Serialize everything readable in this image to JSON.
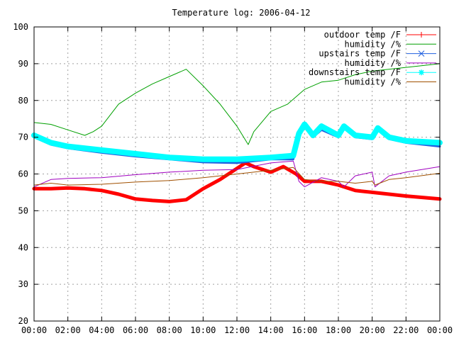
{
  "chart_data": {
    "type": "line",
    "title": "Temperature log: 2006-04-12",
    "xlabel": "",
    "ylabel": "",
    "xlim": [
      "00:00",
      "24:00"
    ],
    "ylim": [
      20,
      100
    ],
    "x_ticks": [
      "00:00",
      "02:00",
      "04:00",
      "06:00",
      "08:00",
      "10:00",
      "12:00",
      "14:00",
      "16:00",
      "18:00",
      "20:00",
      "22:00",
      "00:00"
    ],
    "y_ticks": [
      "20",
      "30",
      "40",
      "50",
      "60",
      "70",
      "80",
      "90",
      "100"
    ],
    "grid": true,
    "legend": "top-right",
    "series": [
      {
        "name": "outdoor temp /F",
        "color": "#ff0000",
        "marker": "plus",
        "x": [
          "00:00",
          "01:00",
          "02:00",
          "03:00",
          "04:00",
          "05:00",
          "06:00",
          "07:00",
          "08:00",
          "09:00",
          "10:00",
          "11:00",
          "12:00",
          "12:30",
          "13:00",
          "14:00",
          "14:45",
          "15:30",
          "16:00",
          "17:00",
          "18:00",
          "19:00",
          "20:00",
          "22:00",
          "24:00"
        ],
        "values": [
          56,
          56,
          56.2,
          56,
          55.5,
          54.5,
          53.2,
          52.8,
          52.5,
          53,
          56,
          58.5,
          61.5,
          63,
          62,
          60.5,
          62,
          60,
          58,
          58,
          57,
          55.5,
          55,
          54,
          53.2
        ]
      },
      {
        "name": "humidity /%",
        "color": "#00a000",
        "marker": "none",
        "x": [
          "00:00",
          "01:00",
          "02:00",
          "03:00",
          "03:30",
          "04:00",
          "05:00",
          "06:00",
          "07:00",
          "08:00",
          "09:00",
          "10:00",
          "11:00",
          "12:00",
          "12:40",
          "13:00",
          "14:00",
          "15:00",
          "16:00",
          "17:00",
          "18:00",
          "19:00",
          "20:00",
          "22:00",
          "24:00"
        ],
        "values": [
          74,
          73.5,
          72,
          70.5,
          71.5,
          73,
          79,
          82,
          84.5,
          86.5,
          88.5,
          84,
          79,
          73,
          68,
          71.5,
          77,
          79,
          83,
          85,
          85.5,
          87,
          88,
          89,
          90
        ]
      },
      {
        "name": "upstairs temp /F",
        "color": "#2060e0",
        "marker": "x",
        "x": [
          "00:00",
          "01:00",
          "02:00",
          "04:00",
          "06:00",
          "08:00",
          "10:00",
          "12:00",
          "14:00",
          "15:20",
          "15:40",
          "16:00",
          "16:30",
          "17:00",
          "18:00",
          "18:20",
          "19:00",
          "20:00",
          "20:20",
          "21:00",
          "22:00",
          "24:00"
        ],
        "values": [
          70,
          68,
          67,
          65.8,
          64.8,
          64,
          63.2,
          63,
          64,
          64,
          70,
          73,
          70,
          72,
          70,
          72.5,
          70,
          69.5,
          72,
          69.5,
          68.5,
          67.5
        ]
      },
      {
        "name": "humidity /%",
        "color": "#a000c0",
        "marker": "none",
        "x": [
          "00:00",
          "01:00",
          "02:00",
          "04:00",
          "06:00",
          "08:00",
          "10:00",
          "12:00",
          "14:00",
          "15:20",
          "15:40",
          "16:00",
          "17:00",
          "18:00",
          "18:20",
          "19:00",
          "20:00",
          "20:10",
          "21:00",
          "22:00",
          "24:00"
        ],
        "values": [
          56.5,
          58.5,
          58.8,
          59,
          59.8,
          60.5,
          61,
          61.2,
          63,
          63.5,
          58,
          56.5,
          59,
          58,
          56.5,
          59.5,
          60.5,
          56.5,
          59.5,
          60.5,
          62
        ]
      },
      {
        "name": "downstairs temp /F",
        "color": "#00ffff",
        "marker": "star",
        "x": [
          "00:00",
          "01:00",
          "02:00",
          "04:00",
          "06:00",
          "08:00",
          "10:00",
          "12:00",
          "14:00",
          "15:20",
          "15:40",
          "16:00",
          "16:30",
          "17:00",
          "18:00",
          "18:20",
          "19:00",
          "20:00",
          "20:20",
          "21:00",
          "22:00",
          "24:00"
        ],
        "values": [
          70.5,
          68.5,
          67.5,
          66.5,
          65.5,
          64.5,
          64,
          64,
          64.5,
          65,
          71,
          73.5,
          70.5,
          73,
          70.5,
          73,
          70.5,
          70,
          72.5,
          70,
          69,
          68.5
        ]
      },
      {
        "name": "humidity /%",
        "color": "#a05000",
        "marker": "none",
        "x": [
          "00:00",
          "01:00",
          "02:00",
          "04:00",
          "06:00",
          "08:00",
          "10:00",
          "12:00",
          "14:00",
          "15:20",
          "16:00",
          "17:00",
          "18:00",
          "19:00",
          "20:00",
          "20:10",
          "21:00",
          "22:00",
          "24:00"
        ],
        "values": [
          57,
          57.5,
          57,
          57.2,
          57.8,
          58.2,
          59,
          60,
          61,
          61.8,
          58.5,
          58,
          58,
          57.5,
          58,
          57,
          58.5,
          59,
          60.2
        ]
      }
    ]
  }
}
